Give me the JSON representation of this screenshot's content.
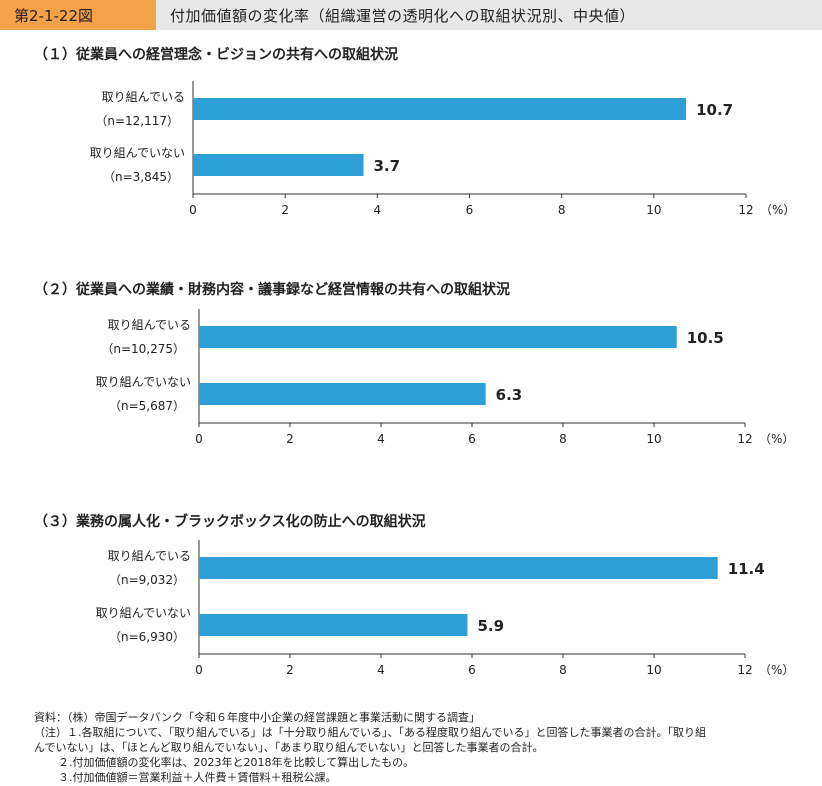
{
  "header": {
    "figure_number": "第2-1-22図",
    "title": "付加価値額の変化率（組織運営の透明化への取組状況別、中央値）"
  },
  "colors": {
    "bar": "#2e9fd6",
    "accent": "#f4a24a",
    "header_bg": "#e8e8e8"
  },
  "chart_data": [
    {
      "type": "bar",
      "orientation": "horizontal",
      "title": "（１）従業員への経営理念・ビジョンの共有への取組状況",
      "categories": [
        "取り組んでいる",
        "取り組んでいない"
      ],
      "sample_sizes": [
        "（n=12,117）",
        "（n=3,845）"
      ],
      "values": [
        10.7,
        3.7
      ],
      "value_labels": [
        "10.7",
        "3.7"
      ],
      "xlim": [
        0,
        12
      ],
      "xticks": [
        "0",
        "2",
        "4",
        "6",
        "8",
        "10",
        "12"
      ],
      "unit": "（%）"
    },
    {
      "type": "bar",
      "orientation": "horizontal",
      "title": "（２）従業員への業績・財務内容・議事録など経営情報の共有への取組状況",
      "categories": [
        "取り組んでいる",
        "取り組んでいない"
      ],
      "sample_sizes": [
        "（n=10,275）",
        "（n=5,687）"
      ],
      "values": [
        10.5,
        6.3
      ],
      "value_labels": [
        "10.5",
        "6.3"
      ],
      "xlim": [
        0,
        12
      ],
      "xticks": [
        "0",
        "2",
        "4",
        "6",
        "8",
        "10",
        "12"
      ],
      "unit": "（%）"
    },
    {
      "type": "bar",
      "orientation": "horizontal",
      "title": "（３）業務の属人化・ブラックボックス化の防止への取組状況",
      "categories": [
        "取り組んでいる",
        "取り組んでいない"
      ],
      "sample_sizes": [
        "（n=9,032）",
        "（n=6,930）"
      ],
      "values": [
        11.4,
        5.9
      ],
      "value_labels": [
        "11.4",
        "5.9"
      ],
      "xlim": [
        0,
        12
      ],
      "xticks": [
        "0",
        "2",
        "4",
        "6",
        "8",
        "10",
        "12"
      ],
      "unit": "（%）"
    }
  ],
  "notes": {
    "source": "資料：（株）帝国データバンク「令和６年度中小企業の経営課題と事業活動に関する調査」",
    "note1a": "（注）１.各取組について、「取り組んでいる」は「十分取り組んでいる」、「ある程度取り組んでいる」と回答した事業者の合計。「取り組",
    "note1b": "んでいない」は、「ほとんど取り組んでいない」、「あまり取り組んでいない」と回答した事業者の合計。",
    "note2": "２.付加価値額の変化率は、2023年と2018年を比較して算出したもの。",
    "note3": "３.付加価値額＝営業利益＋人件費＋賃借料＋租税公課。"
  }
}
